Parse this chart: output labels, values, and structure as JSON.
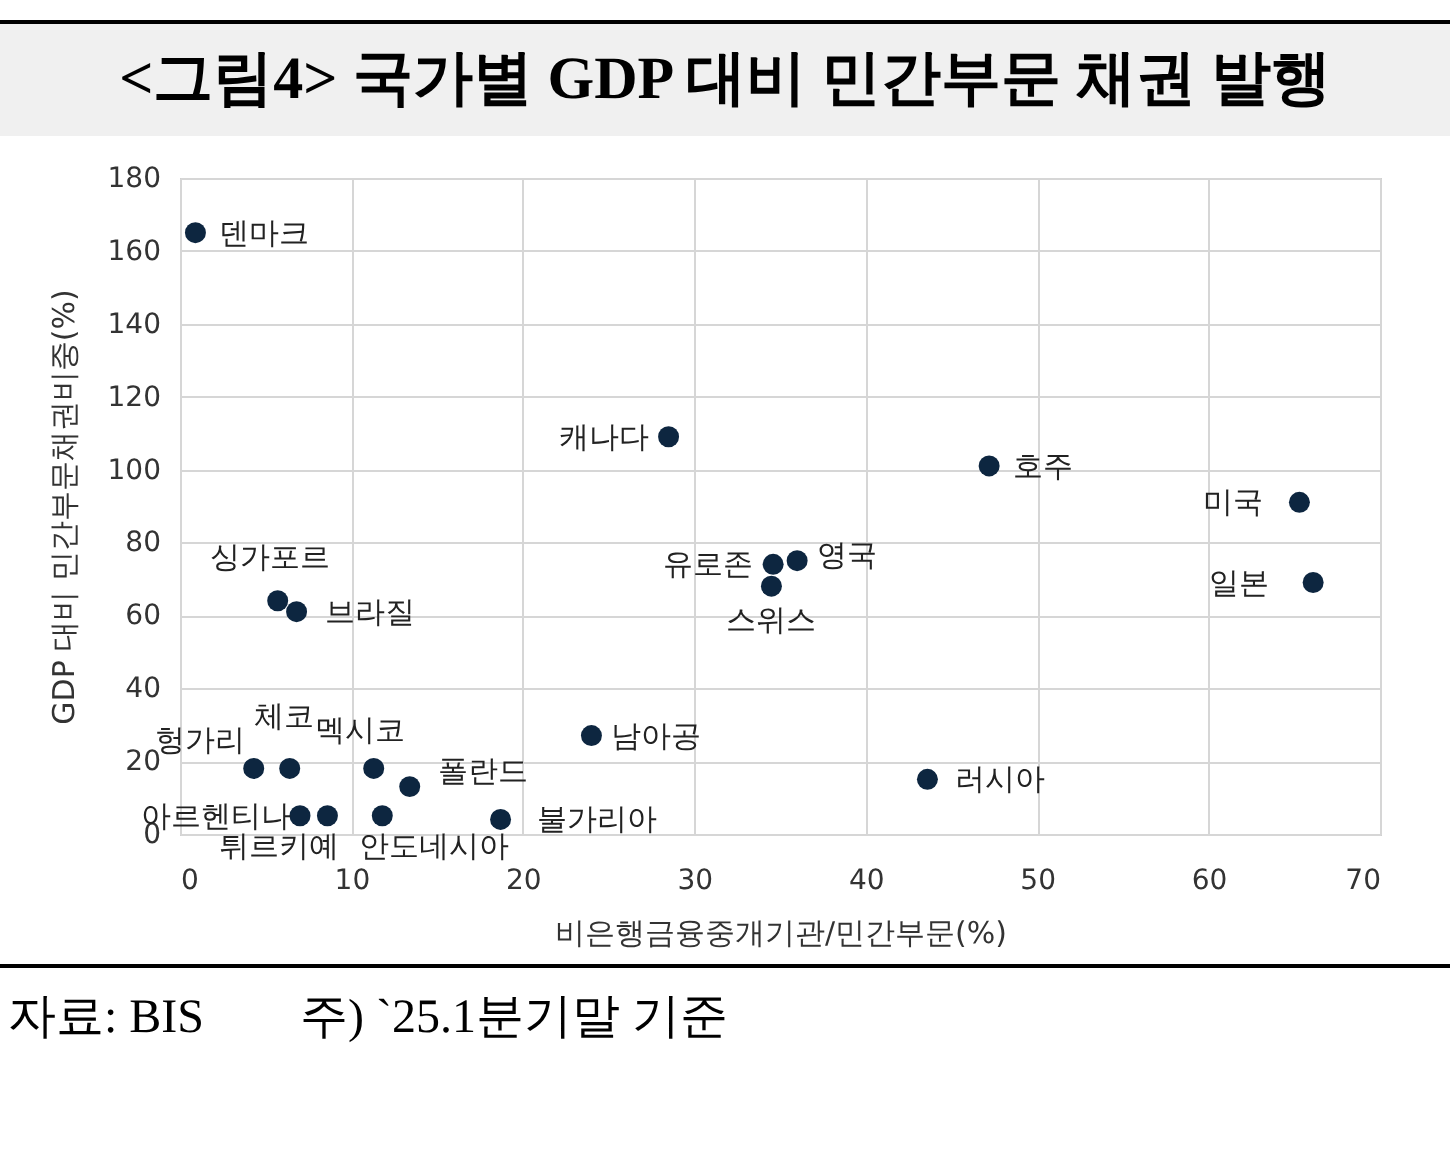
{
  "chart_data": {
    "type": "scatter",
    "title": "<그림4> 국가별 GDP 대비 민간부문 채권 발행",
    "xlabel": "비은행금융중개기관/민간부문(%)",
    "ylabel": "GDP 대비 민간부문채권비중(%)",
    "xlim": [
      0,
      70
    ],
    "xticks": [
      0,
      10,
      20,
      30,
      40,
      50,
      60,
      70
    ],
    "ylim": [
      0,
      180
    ],
    "yticks": [
      0,
      20,
      40,
      60,
      80,
      100,
      120,
      140,
      160,
      180
    ],
    "grid": true,
    "marker": "circle",
    "series": [
      {
        "color": "#0d2640",
        "x": [
          0.9,
          28.5,
          47.2,
          65.3,
          66.1,
          34.6,
          36,
          34.5,
          24,
          43.6,
          5.7,
          6.8,
          4.3,
          6.4,
          11.3,
          13.4,
          7,
          8.6,
          11.8,
          18.7
        ],
        "values": [
          165,
          109,
          101,
          91,
          69,
          74,
          75,
          68,
          27,
          15,
          64,
          61,
          18,
          18,
          18,
          13,
          5,
          5,
          5,
          4
        ]
      }
    ],
    "annotations": [
      {
        "text": "덴마크",
        "x": 0.9,
        "y": 165
      },
      {
        "text": "캐나다",
        "x": 28.5,
        "y": 109
      },
      {
        "text": "호주",
        "x": 47.2,
        "y": 101
      },
      {
        "text": "미국",
        "x": 65.3,
        "y": 91
      },
      {
        "text": "일본",
        "x": 66.1,
        "y": 69
      },
      {
        "text": "유로존",
        "x": 34.6,
        "y": 74
      },
      {
        "text": "영국",
        "x": 36,
        "y": 75
      },
      {
        "text": "스위스",
        "x": 34.5,
        "y": 68
      },
      {
        "text": "남아공",
        "x": 24,
        "y": 27
      },
      {
        "text": "러시아",
        "x": 43.6,
        "y": 15
      },
      {
        "text": "싱가포르",
        "x": 5.7,
        "y": 64
      },
      {
        "text": "브라질",
        "x": 6.8,
        "y": 61
      },
      {
        "text": "헝가리",
        "x": 4.3,
        "y": 18
      },
      {
        "text": "체코",
        "x": 6.4,
        "y": 18
      },
      {
        "text": "멕시코",
        "x": 11.3,
        "y": 18
      },
      {
        "text": "폴란드",
        "x": 13.4,
        "y": 13
      },
      {
        "text": "아르헨티나",
        "x": 7,
        "y": 5
      },
      {
        "text": "튀르키예",
        "x": 8.6,
        "y": 5
      },
      {
        "text": "안도네시아",
        "x": 11.8,
        "y": 5
      },
      {
        "text": "불가리아",
        "x": 18.7,
        "y": 4
      },
      "자료: BIS　　주) `25.1분기말 기준"
    ]
  }
}
